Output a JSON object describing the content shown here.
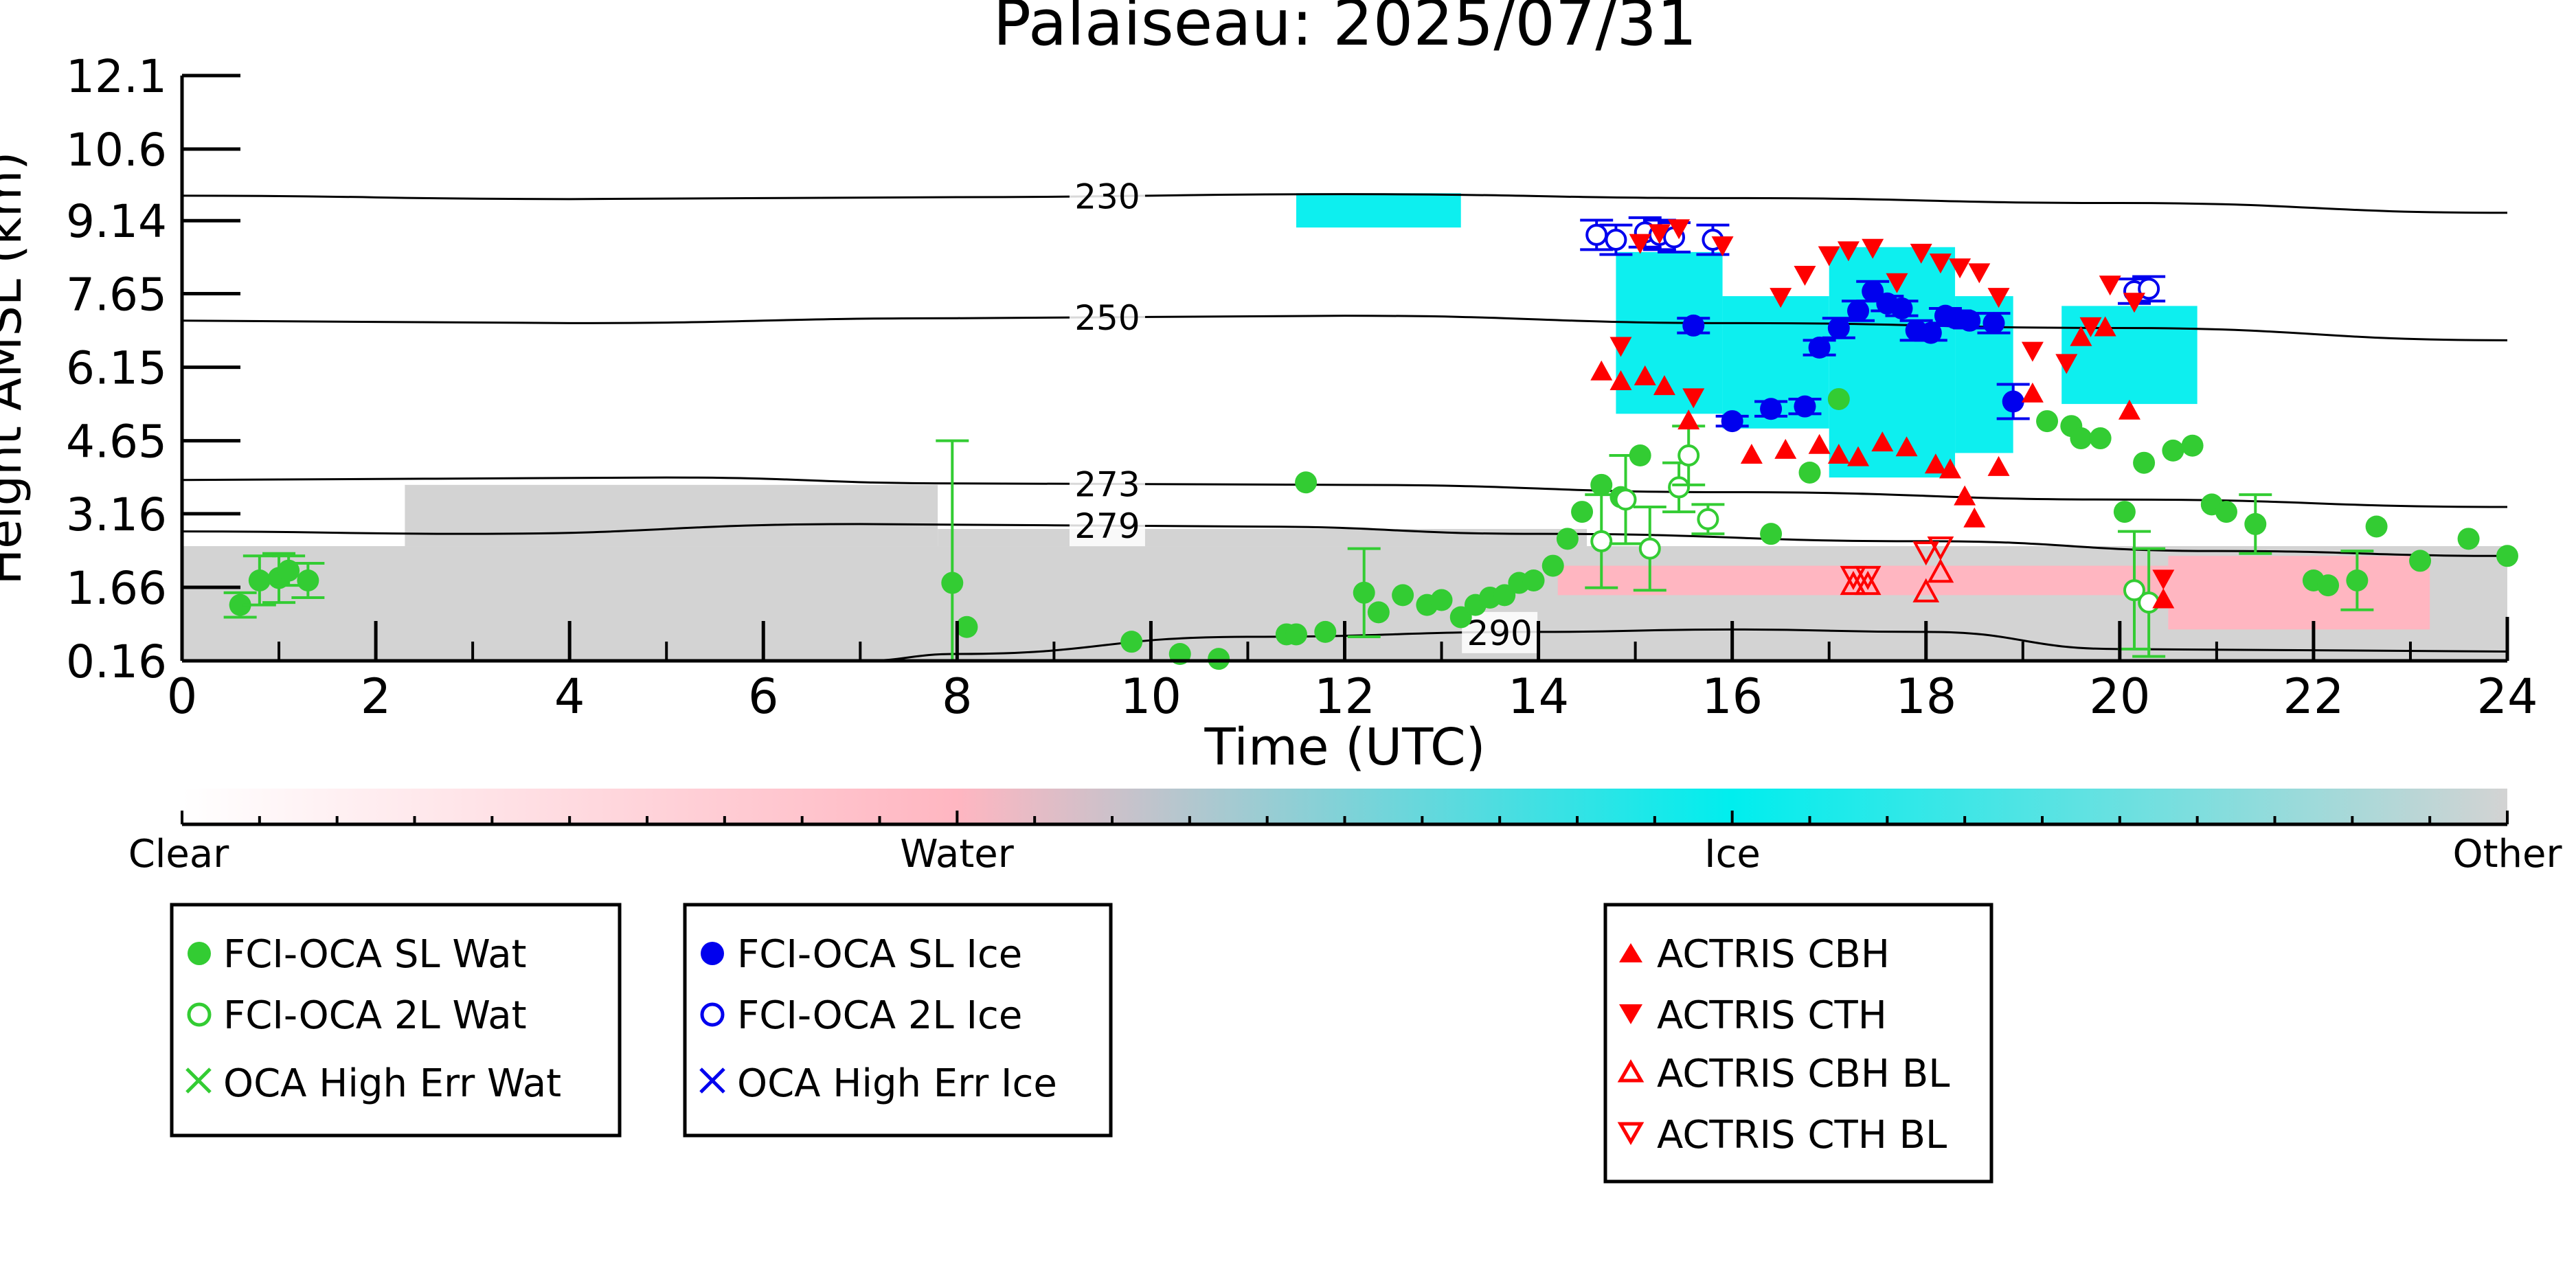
{
  "chart_data": {
    "type": "scatter",
    "title": "Palaiseau: 2025/07/31",
    "xlabel": "Time (UTC)",
    "ylabel": "Height AMSL (km)",
    "xlim": [
      0,
      24
    ],
    "ylim": [
      0.16,
      12.1
    ],
    "x_ticks": [
      "0",
      "2",
      "4",
      "6",
      "8",
      "10",
      "12",
      "14",
      "16",
      "18",
      "20",
      "22",
      "24"
    ],
    "y_ticks": [
      {
        "value": 0.16,
        "label": "0.16"
      },
      {
        "value": 1.66,
        "label": "1.66"
      },
      {
        "value": 3.16,
        "label": "3.16"
      },
      {
        "value": 4.65,
        "label": "4.65"
      },
      {
        "value": 6.15,
        "label": "6.15"
      },
      {
        "value": 7.65,
        "label": "7.65"
      },
      {
        "value": 9.14,
        "label": "9.14"
      },
      {
        "value": 10.6,
        "label": "10.6"
      },
      {
        "value": 12.1,
        "label": "12.1"
      }
    ],
    "colorbar": {
      "labels": [
        "Clear",
        "Water",
        "Ice",
        "Other"
      ],
      "colors": [
        "#ffffff",
        "#ffb6c1",
        "#00eeee",
        "#d3d3d3"
      ]
    },
    "isotherms": [
      {
        "label": "230",
        "x": [
          0,
          4,
          8,
          12,
          16,
          20,
          24
        ],
        "y": [
          9.65,
          9.58,
          9.62,
          9.68,
          9.6,
          9.5,
          9.3
        ]
      },
      {
        "label": "250",
        "x": [
          0,
          4,
          8,
          12,
          16,
          20,
          24
        ],
        "y": [
          7.1,
          7.05,
          7.15,
          7.2,
          7.05,
          6.95,
          6.7
        ]
      },
      {
        "label": "273",
        "x": [
          0,
          5,
          8,
          12,
          16,
          20,
          24
        ],
        "y": [
          3.85,
          3.9,
          3.78,
          3.75,
          3.6,
          3.45,
          3.3
        ]
      },
      {
        "label": "279",
        "x": [
          0,
          3,
          7,
          11,
          14,
          18,
          21,
          24
        ],
        "y": [
          2.8,
          2.75,
          2.95,
          2.9,
          2.75,
          2.6,
          2.4,
          2.3
        ]
      },
      {
        "label": "290",
        "x": [
          7,
          8,
          11,
          14,
          16,
          18,
          20,
          24
        ],
        "y": [
          0.16,
          0.3,
          0.65,
          0.75,
          0.8,
          0.75,
          0.4,
          0.35
        ]
      }
    ],
    "masks": [
      {
        "type": "Other",
        "x0": 0,
        "x1": 24,
        "y0": 0.16,
        "y1": 2.5
      },
      {
        "type": "Other",
        "x0": 2.3,
        "x1": 7.8,
        "y0": 2.5,
        "y1": 3.75
      },
      {
        "type": "Other",
        "x0": 7.8,
        "x1": 14.5,
        "y0": 2.5,
        "y1": 2.85
      },
      {
        "type": "Water",
        "x0": 14.2,
        "x1": 20.5,
        "y0": 1.5,
        "y1": 2.1
      },
      {
        "type": "Water",
        "x0": 20.5,
        "x1": 23.2,
        "y0": 0.8,
        "y1": 2.3
      },
      {
        "type": "Ice",
        "x0": 14.8,
        "x1": 15.9,
        "y0": 5.2,
        "y1": 8.5
      },
      {
        "type": "Ice",
        "x0": 15.9,
        "x1": 17.0,
        "y0": 4.9,
        "y1": 7.6
      },
      {
        "type": "Ice",
        "x0": 17.0,
        "x1": 18.3,
        "y0": 3.9,
        "y1": 8.6
      },
      {
        "type": "Ice",
        "x0": 18.3,
        "x1": 18.9,
        "y0": 4.4,
        "y1": 7.6
      },
      {
        "type": "Ice",
        "x0": 19.4,
        "x1": 20.8,
        "y0": 5.4,
        "y1": 7.4
      },
      {
        "type": "Ice",
        "x0": 11.5,
        "x1": 13.2,
        "y0": 9.0,
        "y1": 9.7
      }
    ],
    "series": [
      {
        "name": "FCI-OCA SL Wat",
        "marker": "filled-circle",
        "color": "#33cc33",
        "x": [
          0.6,
          0.8,
          1.0,
          1.1,
          1.3,
          7.95,
          8.1,
          9.8,
          10.3,
          10.7,
          11.4,
          11.5,
          11.8,
          11.6,
          12.2,
          12.35,
          12.6,
          12.85,
          13.0,
          13.2,
          13.35,
          13.5,
          13.65,
          13.8,
          13.95,
          14.15,
          14.3,
          14.45,
          14.65,
          14.85,
          15.05,
          16.4,
          16.8,
          17.1,
          19.25,
          19.5,
          19.6,
          19.8,
          20.05,
          20.25,
          20.55,
          20.75,
          20.95,
          21.1,
          21.4,
          22.0,
          22.15,
          22.45,
          22.65,
          23.1,
          23.6,
          24.0
        ],
        "y": [
          1.3,
          1.8,
          1.85,
          2.0,
          1.8,
          1.75,
          0.85,
          0.55,
          0.3,
          0.2,
          0.7,
          0.7,
          0.75,
          3.8,
          1.55,
          1.15,
          1.5,
          1.3,
          1.4,
          1.05,
          1.3,
          1.45,
          1.5,
          1.75,
          1.8,
          2.1,
          2.65,
          3.2,
          3.75,
          3.5,
          4.35,
          2.75,
          4.0,
          5.5,
          5.05,
          4.95,
          4.7,
          4.7,
          3.2,
          4.2,
          4.45,
          4.55,
          3.35,
          3.2,
          2.95,
          1.8,
          1.7,
          1.8,
          2.9,
          2.2,
          2.65,
          2.3
        ],
        "err": [
          0.25,
          0.5,
          0.5,
          0.3,
          0.35,
          2.9,
          0,
          0,
          0,
          0,
          0,
          0,
          0,
          0,
          0.9,
          0,
          0,
          0,
          0,
          0,
          0,
          0,
          0,
          0,
          0,
          0,
          0,
          0,
          0,
          0,
          0,
          0,
          0,
          0,
          0,
          0,
          0,
          0,
          0,
          0,
          0,
          0,
          0,
          0,
          0.6,
          0,
          0,
          0.6,
          0,
          0,
          0,
          0
        ]
      },
      {
        "name": "FCI-OCA 2L Wat",
        "marker": "open-circle",
        "color": "#33cc33",
        "x": [
          14.65,
          14.9,
          15.15,
          15.45,
          15.55,
          15.75,
          20.15,
          20.3
        ],
        "y": [
          2.6,
          3.45,
          2.45,
          3.7,
          4.35,
          3.05,
          1.6,
          1.35
        ],
        "err": [
          0.95,
          0.9,
          0.85,
          0.5,
          0.6,
          0.3,
          1.2,
          1.1
        ]
      },
      {
        "name": "FCI-OCA SL Ice",
        "marker": "filled-circle",
        "color": "#0000ee",
        "x": [
          15.6,
          16.0,
          16.4,
          16.75,
          16.9,
          17.1,
          17.3,
          17.45,
          17.6,
          17.75,
          17.9,
          18.05,
          18.2,
          18.3,
          18.45,
          18.7,
          18.9
        ],
        "y": [
          7.0,
          5.05,
          5.3,
          5.35,
          6.55,
          6.95,
          7.3,
          7.7,
          7.45,
          7.35,
          6.9,
          6.85,
          7.2,
          7.15,
          7.1,
          7.05,
          5.45
        ],
        "err": [
          0.15,
          0.1,
          0.15,
          0.15,
          0.15,
          0.2,
          0.2,
          0.2,
          0.15,
          0.15,
          0.2,
          0.15,
          0.15,
          0.15,
          0.15,
          0.2,
          0.35
        ]
      },
      {
        "name": "FCI-OCA 2L Ice",
        "marker": "open-circle",
        "color": "#0000ee",
        "x": [
          14.6,
          14.8,
          15.1,
          15.25,
          15.4,
          15.8,
          20.15,
          20.3
        ],
        "y": [
          8.85,
          8.75,
          8.9,
          8.85,
          8.8,
          8.75,
          7.7,
          7.75
        ],
        "err": [
          0.3,
          0.3,
          0.3,
          0.3,
          0.3,
          0.3,
          0.25,
          0.25
        ]
      },
      {
        "name": "OCA High Err Wat",
        "marker": "x",
        "color": "#33cc33",
        "x": [],
        "y": []
      },
      {
        "name": "OCA High Err Ice",
        "marker": "x",
        "color": "#0000ee",
        "x": [],
        "y": []
      },
      {
        "name": "ACTRIS CBH",
        "marker": "filled-triangle-up",
        "color": "#ff0000",
        "x": [
          14.65,
          14.85,
          15.1,
          15.3,
          15.55,
          16.2,
          16.55,
          16.9,
          17.1,
          17.3,
          17.55,
          17.8,
          18.1,
          18.25,
          18.4,
          18.5,
          18.75,
          19.1,
          19.6,
          19.85,
          20.1,
          20.45
        ],
        "y": [
          6.05,
          5.85,
          5.95,
          5.75,
          5.05,
          4.35,
          4.45,
          4.55,
          4.35,
          4.3,
          4.6,
          4.5,
          4.15,
          4.05,
          3.5,
          3.05,
          4.1,
          5.6,
          6.75,
          6.95,
          5.25,
          1.4
        ],
        "err": []
      },
      {
        "name": "ACTRIS CTH",
        "marker": "filled-triangle-down",
        "color": "#ff0000",
        "x": [
          14.85,
          15.05,
          15.25,
          15.45,
          15.6,
          15.9,
          16.5,
          16.75,
          17.0,
          17.2,
          17.45,
          17.7,
          17.95,
          18.15,
          18.35,
          18.55,
          18.75,
          19.1,
          19.45,
          19.7,
          19.9,
          20.15,
          20.45
        ],
        "y": [
          6.6,
          8.7,
          8.9,
          9.0,
          5.55,
          8.65,
          7.6,
          8.05,
          8.45,
          8.55,
          8.6,
          7.9,
          8.5,
          8.3,
          8.2,
          8.1,
          7.6,
          6.5,
          6.25,
          7.0,
          7.85,
          7.5,
          1.85
        ],
        "err": []
      },
      {
        "name": "ACTRIS CBH BL",
        "marker": "open-triangle-up",
        "color": "#ff0000",
        "x": [
          17.25,
          17.4,
          18.0,
          18.15
        ],
        "y": [
          1.7,
          1.7,
          1.55,
          1.95
        ],
        "err": []
      },
      {
        "name": "ACTRIS CTH BL",
        "marker": "open-triangle-down",
        "color": "#ff0000",
        "x": [
          17.25,
          17.4,
          18.0,
          18.15
        ],
        "y": [
          1.9,
          1.9,
          2.4,
          2.5
        ],
        "err": []
      }
    ]
  }
}
